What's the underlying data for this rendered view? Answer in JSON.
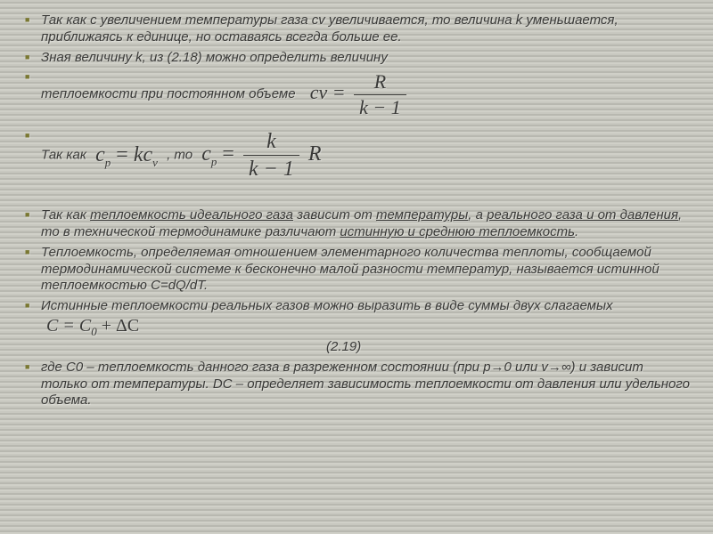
{
  "items": {
    "p1": "Так как с увеличением температуры газа сv увеличивается, то величина k уменьшается, приближаясь к единице, но оставаясь всегда больше ее.",
    "p2": "Зная величину k, из (2.18) можно определить величину",
    "p3": "теплоемкости при постоянном объеме",
    "p4a": "Так как",
    "p4b": ", то",
    "p5a": "Так как ",
    "p5b": "теплоемкость идеального газа",
    "p5c": " зависит от ",
    "p5d": "температуры",
    "p5e": ", а ",
    "p5f": "реального газа и от давления",
    "p5g": ", то в технической термодинамике различают ",
    "p5h": "истинную и среднюю теплоемкость",
    "p5i": ".",
    "p6": "Теплоемкость, определяемая отношением элементарного количества теплоты, сообщаемой термодинамической системе к бесконечно малой разности температур, называется истинной теплоемкостью C=dQ/dT.",
    "p7": "Истинные теплоемкости реальных газов можно выразить в виде суммы двух слагаемых",
    "ref": "(2.19)",
    "p8": "где C0 – теплоемкость данного газа в разреженном состоянии (при p→0 или v→∞) и зависит только от температуры. DС – определяет зависимость теплоемкости от давления или удельного объема."
  },
  "eq": {
    "cv": {
      "lhs_c": "c",
      "lhs_sub": "v",
      "eq": " = ",
      "R": "R",
      "k": "k",
      "minus1": " − 1"
    },
    "cpkcv": {
      "c": "c",
      "p": "p",
      "eq": " = ",
      "k": "k",
      "cv_c": "c",
      "cv_v": "v"
    },
    "cp": {
      "c": "c",
      "p": "p",
      "eq": " = ",
      "k": "k",
      "km1": "k − 1",
      "R": "R"
    },
    "sum": {
      "expr": "C = C",
      "zero": "0",
      "plus": " + ΔC"
    }
  },
  "style": {
    "text_color": "#3a3a38",
    "bullet_color": "#7a7832",
    "bg_stripe1": "#c8c8c0",
    "bg_stripe2": "#b8b8b0",
    "bg_stripe3": "#d0d0c8"
  }
}
